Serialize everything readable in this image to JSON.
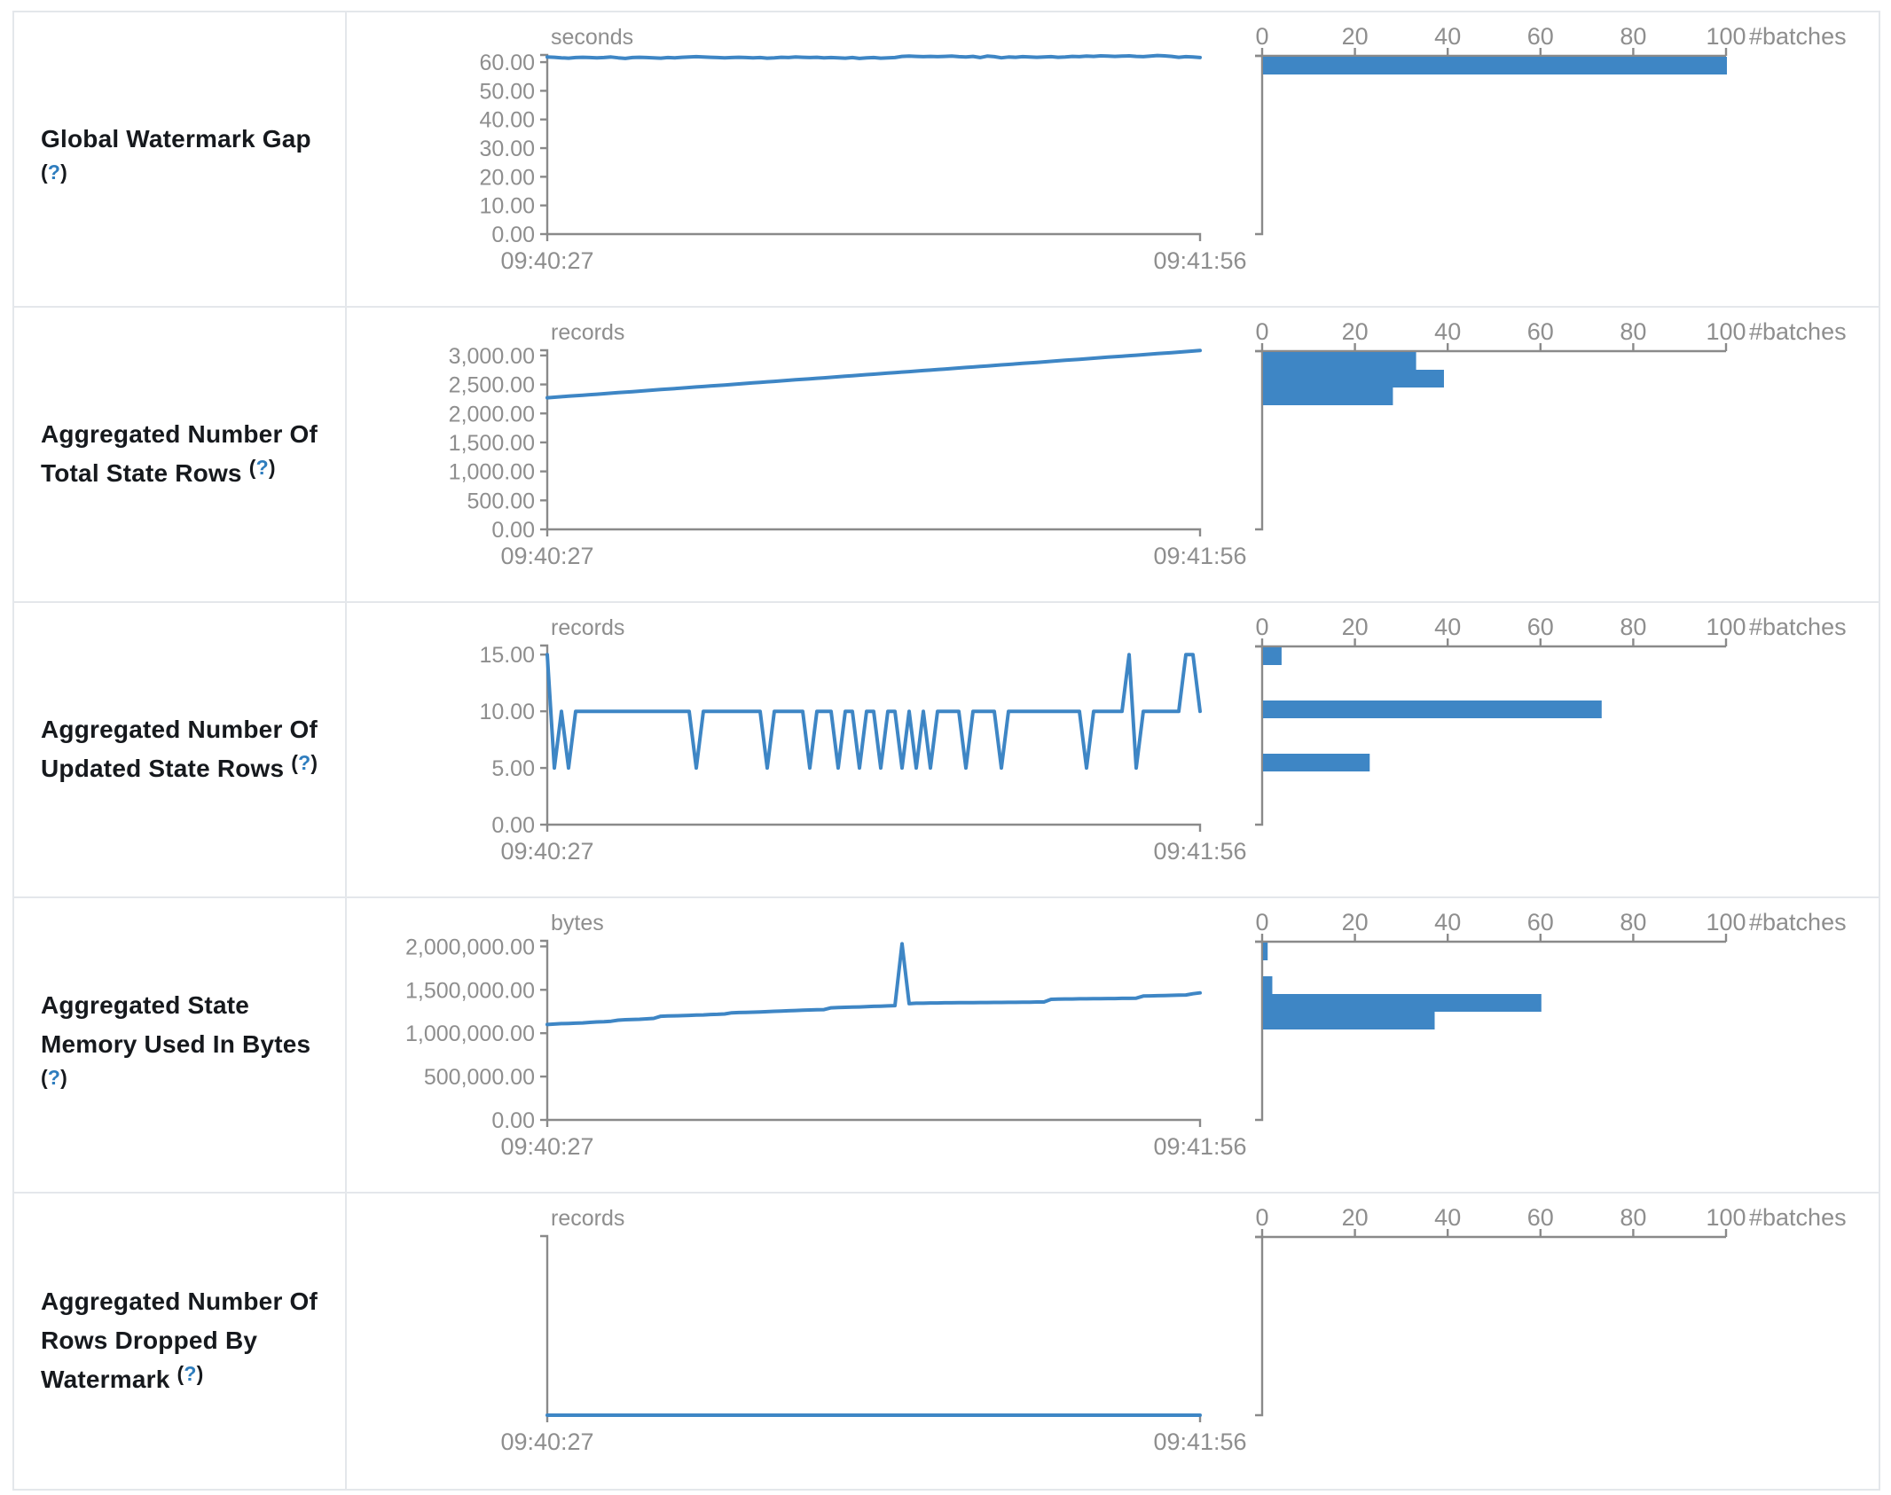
{
  "colors": {
    "accent_blue": "#3e86c5",
    "help_blue": "#2e7dbe",
    "axis_line_gray": "#8a8a8a",
    "axis_text_gray": "#8e8e8e",
    "title_color": "#16191d",
    "border_color": "#e4e7eb"
  },
  "histogram_header_label": "#batches",
  "rows": [
    {
      "title": "Global Watermark Gap",
      "help_open": "(",
      "help_q": "?",
      "help_close": ")",
      "timeline": {
        "type": "line",
        "unit": "seconds",
        "x_start_label": "09:40:27",
        "x_end_label": "09:41:56",
        "y_tick_labels": [
          "60.00",
          "50.00",
          "40.00",
          "30.00",
          "20.00",
          "10.00",
          "0.00"
        ],
        "y_tick_values": [
          60,
          50,
          40,
          30,
          20,
          10,
          0
        ],
        "y_axis_max": 62.5,
        "values": [
          61.8,
          61.7,
          61.5,
          61.4,
          61.6,
          61.7,
          61.6,
          61.5,
          61.6,
          61.8,
          61.5,
          61.3,
          61.6,
          61.7,
          61.6,
          61.5,
          61.4,
          61.6,
          61.5,
          61.7,
          61.8,
          61.9,
          61.8,
          61.7,
          61.6,
          61.5,
          61.6,
          61.7,
          61.6,
          61.5,
          61.6,
          61.4,
          61.5,
          61.7,
          61.6,
          61.8,
          61.7,
          61.6,
          61.7,
          61.5,
          61.6,
          61.5,
          61.4,
          61.6,
          61.3,
          61.5,
          61.6,
          61.4,
          61.5,
          61.6,
          62.0,
          62.1,
          62.0,
          61.9,
          62.0,
          61.9,
          62.0,
          62.1,
          61.9,
          61.8,
          62.0,
          61.6,
          62.1,
          61.9,
          61.5,
          61.8,
          61.7,
          61.9,
          61.8,
          61.7,
          61.8,
          61.9,
          61.7,
          61.8,
          62.0,
          61.9,
          62.1,
          62.0,
          62.2,
          62.1,
          62.0,
          62.1,
          62.2,
          62.0,
          61.9,
          62.1,
          62.3,
          62.2,
          62.0,
          61.7,
          61.9,
          61.8,
          61.6
        ]
      },
      "histogram": {
        "type": "bar",
        "axis_label": "#batches",
        "x_tick_labels": [
          "0",
          "20",
          "40",
          "60",
          "80",
          "100"
        ],
        "x_tick_values": [
          0,
          20,
          40,
          60,
          80,
          100
        ],
        "bars": [
          {
            "count": 100,
            "offset": 0,
            "bin_center_seconds": 61
          }
        ]
      }
    },
    {
      "title": "Aggregated Number Of Total State Rows",
      "help_open": "(",
      "help_q": "?",
      "help_close": ")",
      "timeline": {
        "type": "line",
        "unit": "records",
        "x_start_label": "09:40:27",
        "x_end_label": "09:41:56",
        "y_tick_labels": [
          "3,000.00",
          "2,500.00",
          "2,000.00",
          "1,500.00",
          "1,000.00",
          "500.00",
          "0.00"
        ],
        "y_tick_values": [
          3000,
          2500,
          2000,
          1500,
          1000,
          500,
          0
        ],
        "y_axis_max": 3090,
        "values": [
          2270,
          2279,
          2288,
          2297,
          2305,
          2314,
          2323,
          2332,
          2341,
          2350,
          2359,
          2367,
          2376,
          2385,
          2394,
          2403,
          2412,
          2421,
          2429,
          2438,
          2447,
          2456,
          2465,
          2474,
          2483,
          2491,
          2500,
          2509,
          2518,
          2527,
          2536,
          2545,
          2553,
          2562,
          2571,
          2580,
          2589,
          2598,
          2607,
          2615,
          2624,
          2633,
          2642,
          2651,
          2660,
          2669,
          2677,
          2686,
          2695,
          2704,
          2713,
          2722,
          2731,
          2739,
          2748,
          2757,
          2766,
          2775,
          2784,
          2793,
          2801,
          2810,
          2819,
          2828,
          2837,
          2846,
          2855,
          2863,
          2872,
          2881,
          2890,
          2899,
          2908,
          2917,
          2925,
          2934,
          2943,
          2952,
          2961,
          2970,
          2979,
          2987,
          2996,
          3005,
          3014,
          3023,
          3032,
          3041,
          3049,
          3058,
          3067,
          3076,
          3085
        ]
      },
      "histogram": {
        "type": "bar",
        "axis_label": "#batches",
        "x_tick_labels": [
          "0",
          "20",
          "40",
          "60",
          "80",
          "100"
        ],
        "x_tick_values": [
          0,
          20,
          40,
          60,
          80,
          100
        ],
        "bars": [
          {
            "count": 33,
            "offset": 0,
            "bin_center_records": 2925
          },
          {
            "count": 39,
            "offset": 20,
            "bin_center_records": 2600
          },
          {
            "count": 28,
            "offset": 40,
            "bin_center_records": 2285
          }
        ]
      }
    },
    {
      "title": "Aggregated Number Of Updated State Rows",
      "help_open": "(",
      "help_q": "?",
      "help_close": ")",
      "timeline": {
        "type": "line",
        "unit": "records",
        "x_start_label": "09:40:27",
        "x_end_label": "09:41:56",
        "y_tick_labels": [
          "15.00",
          "10.00",
          "5.00",
          "0.00"
        ],
        "y_tick_values": [
          15,
          10,
          5,
          0
        ],
        "y_axis_max": 15.8,
        "values": [
          15,
          5,
          10,
          5,
          10,
          10,
          10,
          10,
          10,
          10,
          10,
          10,
          10,
          10,
          10,
          10,
          10,
          10,
          10,
          10,
          10,
          5,
          10,
          10,
          10,
          10,
          10,
          10,
          10,
          10,
          10,
          5,
          10,
          10,
          10,
          10,
          10,
          5,
          10,
          10,
          10,
          5,
          10,
          10,
          5,
          10,
          10,
          5,
          10,
          10,
          5,
          10,
          5,
          10,
          5,
          10,
          10,
          10,
          10,
          5,
          10,
          10,
          10,
          10,
          5,
          10,
          10,
          10,
          10,
          10,
          10,
          10,
          10,
          10,
          10,
          10,
          5,
          10,
          10,
          10,
          10,
          10,
          15,
          5,
          10,
          10,
          10,
          10,
          10,
          10,
          15,
          15,
          10
        ]
      },
      "histogram": {
        "type": "bar",
        "axis_label": "#batches",
        "x_tick_labels": [
          "0",
          "20",
          "40",
          "60",
          "80",
          "100"
        ],
        "x_tick_values": [
          0,
          20,
          40,
          60,
          80,
          100
        ],
        "bars": [
          {
            "count": 4,
            "offset": 0,
            "bin_center_records": 15
          },
          {
            "count": 73,
            "offset": 60,
            "bin_center_records": 10
          },
          {
            "count": 23,
            "offset": 120,
            "bin_center_records": 5
          }
        ]
      }
    },
    {
      "title": "Aggregated State Memory Used In Bytes",
      "help_open": "(",
      "help_q": "?",
      "help_close": ")",
      "timeline": {
        "type": "line",
        "unit": "bytes",
        "x_start_label": "09:40:27",
        "x_end_label": "09:41:56",
        "y_tick_labels": [
          "2,000,000.00",
          "1,500,000.00",
          "1,000,000.00",
          "500,000.00",
          "0.00"
        ],
        "y_tick_values": [
          2000000,
          1500000,
          1000000,
          500000,
          0
        ],
        "y_axis_max": 2065000,
        "values": [
          1100000,
          1105000,
          1110000,
          1112000,
          1115000,
          1118000,
          1125000,
          1130000,
          1132000,
          1138000,
          1150000,
          1155000,
          1158000,
          1160000,
          1165000,
          1170000,
          1195000,
          1198000,
          1200000,
          1202000,
          1205000,
          1208000,
          1210000,
          1215000,
          1218000,
          1222000,
          1235000,
          1238000,
          1240000,
          1242000,
          1245000,
          1248000,
          1252000,
          1255000,
          1258000,
          1262000,
          1265000,
          1268000,
          1270000,
          1272000,
          1292000,
          1295000,
          1298000,
          1300000,
          1302000,
          1305000,
          1310000,
          1312000,
          1315000,
          1318000,
          2030000,
          1340000,
          1345000,
          1345000,
          1348000,
          1348000,
          1350000,
          1350000,
          1352000,
          1352000,
          1352000,
          1354000,
          1354000,
          1355000,
          1355000,
          1356000,
          1356000,
          1358000,
          1358000,
          1360000,
          1360000,
          1390000,
          1392000,
          1394000,
          1394000,
          1396000,
          1396000,
          1398000,
          1398000,
          1400000,
          1400000,
          1402000,
          1402000,
          1404000,
          1428000,
          1430000,
          1432000,
          1434000,
          1436000,
          1438000,
          1440000,
          1455000,
          1465000
        ]
      },
      "histogram": {
        "type": "bar",
        "axis_label": "#batches",
        "x_tick_labels": [
          "0",
          "20",
          "40",
          "60",
          "80",
          "100"
        ],
        "x_tick_values": [
          0,
          20,
          40,
          60,
          80,
          100
        ],
        "bars": [
          {
            "count": 1,
            "offset": 0,
            "bin_center_bytes": 2000000
          },
          {
            "count": 2,
            "offset": 38,
            "bin_center_bytes": 1550000
          },
          {
            "count": 60,
            "offset": 58,
            "bin_center_bytes": 1350000
          },
          {
            "count": 37,
            "offset": 78,
            "bin_center_bytes": 1150000
          }
        ]
      }
    },
    {
      "title": "Aggregated Number Of Rows Dropped By Watermark",
      "help_open": "(",
      "help_q": "?",
      "help_close": ")",
      "timeline": {
        "type": "line",
        "unit": "records",
        "x_start_label": "09:40:27",
        "x_end_label": "09:41:56",
        "y_tick_labels": [],
        "y_tick_values": [],
        "y_axis_max": 1,
        "values": [
          0,
          0
        ]
      },
      "histogram": {
        "type": "bar",
        "axis_label": "#batches",
        "x_tick_labels": [
          "0",
          "20",
          "40",
          "60",
          "80",
          "100"
        ],
        "x_tick_values": [
          0,
          20,
          40,
          60,
          80,
          100
        ],
        "bars": []
      }
    }
  ]
}
